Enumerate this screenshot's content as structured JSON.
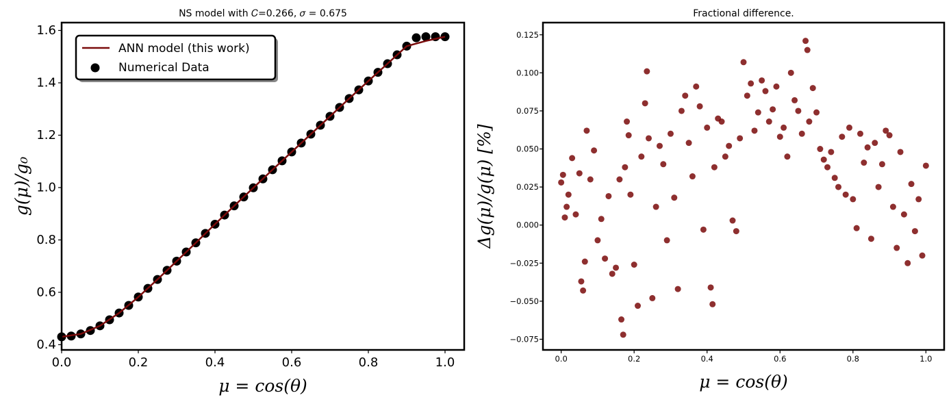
{
  "chart_data": [
    {
      "type": "scatter",
      "title": "NS model with 𝐶=0.266, 𝜎 = 0.675",
      "xlabel": "μ = cos(θ)",
      "ylabel": "g(μ)/g₀",
      "xlim": [
        0.0,
        1.05
      ],
      "ylim": [
        0.38,
        1.63
      ],
      "x_ticks": [
        "0.0",
        "0.2",
        "0.4",
        "0.6",
        "0.8",
        "1.0"
      ],
      "y_ticks": [
        "0.4",
        "0.6",
        "0.8",
        "1.0",
        "1.2",
        "1.4",
        "1.6"
      ],
      "grid": false,
      "legend": "top-left",
      "legend_entries": [
        "ANN model (this work)",
        "Numerical Data"
      ],
      "colors": {
        "line": "#7a0b0b",
        "points": "#000000"
      },
      "series": [
        {
          "name": "Numerical Data",
          "kind": "scatter",
          "x": [
            0.0,
            0.025,
            0.05,
            0.075,
            0.1,
            0.125,
            0.15,
            0.175,
            0.2,
            0.225,
            0.25,
            0.275,
            0.3,
            0.325,
            0.35,
            0.375,
            0.4,
            0.425,
            0.45,
            0.475,
            0.5,
            0.525,
            0.55,
            0.575,
            0.6,
            0.625,
            0.65,
            0.675,
            0.7,
            0.725,
            0.75,
            0.775,
            0.8,
            0.825,
            0.85,
            0.875,
            0.9,
            0.925,
            0.95,
            0.975,
            1.0
          ],
          "y": [
            0.43,
            0.433,
            0.441,
            0.454,
            0.472,
            0.495,
            0.521,
            0.55,
            0.582,
            0.615,
            0.649,
            0.684,
            0.719,
            0.754,
            0.789,
            0.825,
            0.86,
            0.895,
            0.93,
            0.964,
            0.999,
            1.033,
            1.068,
            1.102,
            1.136,
            1.17,
            1.204,
            1.238,
            1.272,
            1.306,
            1.34,
            1.373,
            1.407,
            1.44,
            1.473,
            1.507,
            1.54,
            1.572,
            1.576,
            1.576,
            1.576
          ]
        },
        {
          "name": "ANN model (this work)",
          "kind": "line",
          "x": [
            0.0,
            0.05,
            0.1,
            0.15,
            0.2,
            0.25,
            0.3,
            0.35,
            0.4,
            0.45,
            0.5,
            0.55,
            0.6,
            0.65,
            0.7,
            0.75,
            0.8,
            0.85,
            0.9,
            0.95,
            1.0
          ],
          "y": [
            0.43,
            0.441,
            0.472,
            0.521,
            0.582,
            0.649,
            0.719,
            0.789,
            0.86,
            0.93,
            0.999,
            1.068,
            1.136,
            1.204,
            1.272,
            1.34,
            1.407,
            1.473,
            1.54,
            1.56,
            1.576
          ]
        }
      ]
    },
    {
      "type": "scatter",
      "title": "Fractional difference.",
      "xlabel": "μ = cos(θ)",
      "ylabel": "Δg(μ)/g(μ) [%]",
      "xlim": [
        -0.05,
        1.05
      ],
      "ylim": [
        -0.082,
        0.133
      ],
      "x_ticks": [
        "0.0",
        "0.2",
        "0.4",
        "0.6",
        "0.8",
        "1.0"
      ],
      "y_ticks": [
        "−0.075",
        "−0.050",
        "−0.025",
        "0.000",
        "0.025",
        "0.050",
        "0.075",
        "0.100",
        "0.125"
      ],
      "grid": false,
      "colors": {
        "points": "#7a0b0b"
      },
      "series": [
        {
          "name": "",
          "kind": "scatter",
          "x": [
            0.0,
            0.005,
            0.01,
            0.015,
            0.02,
            0.03,
            0.04,
            0.05,
            0.055,
            0.06,
            0.065,
            0.07,
            0.08,
            0.09,
            0.1,
            0.11,
            0.12,
            0.13,
            0.14,
            0.15,
            0.16,
            0.165,
            0.17,
            0.175,
            0.18,
            0.185,
            0.19,
            0.2,
            0.21,
            0.22,
            0.23,
            0.235,
            0.24,
            0.25,
            0.26,
            0.27,
            0.28,
            0.29,
            0.3,
            0.31,
            0.32,
            0.33,
            0.34,
            0.35,
            0.36,
            0.37,
            0.38,
            0.39,
            0.4,
            0.41,
            0.415,
            0.42,
            0.43,
            0.44,
            0.45,
            0.46,
            0.47,
            0.48,
            0.49,
            0.5,
            0.51,
            0.52,
            0.53,
            0.54,
            0.55,
            0.56,
            0.57,
            0.58,
            0.59,
            0.6,
            0.61,
            0.62,
            0.63,
            0.64,
            0.65,
            0.66,
            0.67,
            0.675,
            0.68,
            0.69,
            0.7,
            0.71,
            0.72,
            0.73,
            0.74,
            0.75,
            0.76,
            0.77,
            0.78,
            0.79,
            0.8,
            0.81,
            0.82,
            0.83,
            0.84,
            0.85,
            0.86,
            0.87,
            0.88,
            0.89,
            0.9,
            0.91,
            0.92,
            0.93,
            0.94,
            0.95,
            0.96,
            0.97,
            0.98,
            0.99,
            1.0
          ],
          "y": [
            0.028,
            0.033,
            0.005,
            0.012,
            0.02,
            0.044,
            0.007,
            0.034,
            -0.037,
            -0.043,
            -0.024,
            0.062,
            0.03,
            0.049,
            -0.01,
            0.004,
            -0.022,
            0.019,
            -0.032,
            -0.028,
            0.03,
            -0.062,
            -0.072,
            0.038,
            0.068,
            0.059,
            0.02,
            -0.026,
            -0.053,
            0.045,
            0.08,
            0.101,
            0.057,
            -0.048,
            0.012,
            0.052,
            0.04,
            -0.01,
            0.06,
            0.018,
            -0.042,
            0.075,
            0.085,
            0.054,
            0.032,
            0.091,
            0.078,
            -0.003,
            0.064,
            -0.041,
            -0.052,
            0.038,
            0.07,
            0.068,
            0.045,
            0.052,
            0.003,
            -0.004,
            0.057,
            0.107,
            0.085,
            0.093,
            0.062,
            0.074,
            0.095,
            0.088,
            0.068,
            0.076,
            0.091,
            0.058,
            0.064,
            0.045,
            0.1,
            0.082,
            0.075,
            0.06,
            0.121,
            0.115,
            0.068,
            0.09,
            0.074,
            0.05,
            0.043,
            0.038,
            0.048,
            0.031,
            0.025,
            0.058,
            0.02,
            0.064,
            0.017,
            -0.002,
            0.06,
            0.041,
            0.051,
            -0.009,
            0.054,
            0.025,
            0.04,
            0.062,
            0.059,
            0.012,
            -0.015,
            0.048,
            0.007,
            -0.025,
            0.027,
            -0.004,
            0.017,
            -0.02,
            0.039
          ]
        }
      ]
    }
  ]
}
